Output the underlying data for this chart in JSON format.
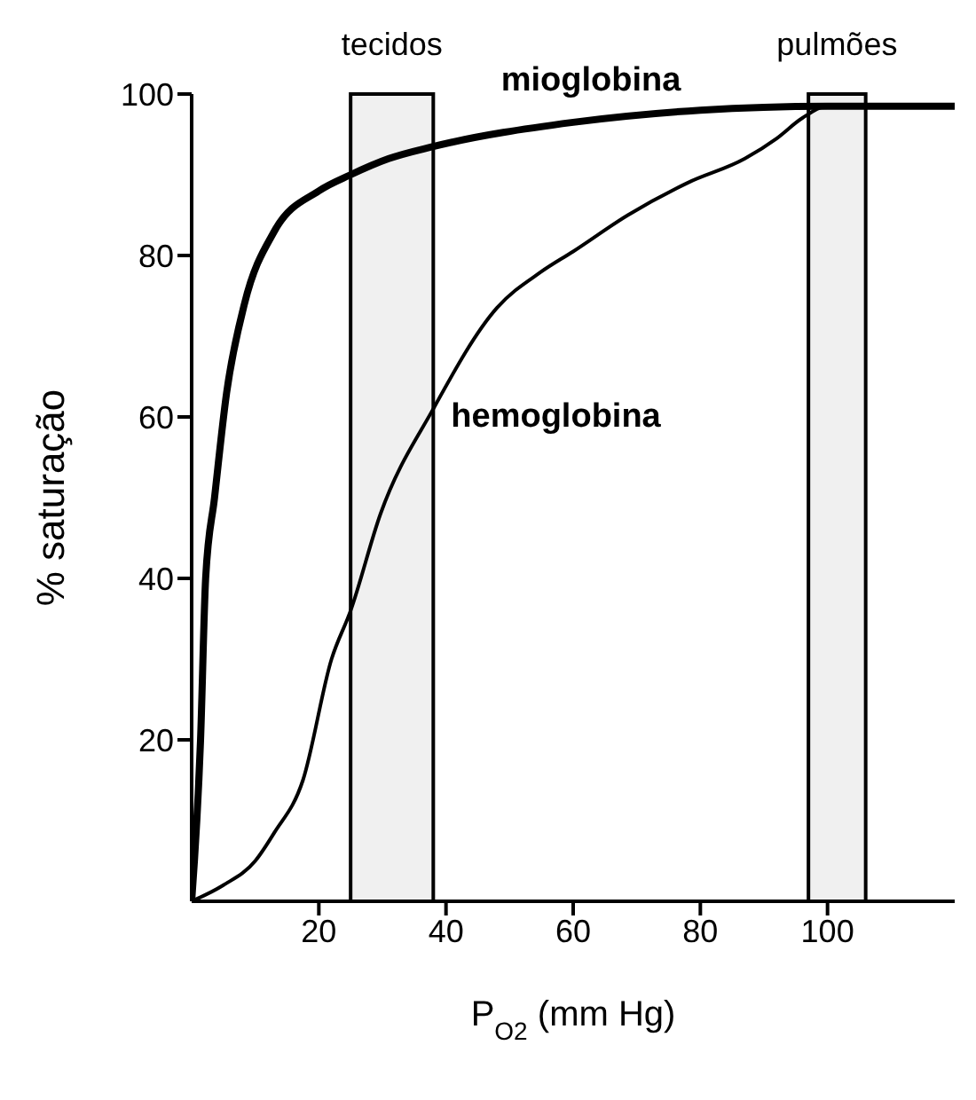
{
  "chart_data": {
    "type": "line",
    "xlabel": "P$_{O2}$ (mm Hg)",
    "ylabel": "% saturação",
    "xlim": [
      0,
      120
    ],
    "xticks": [
      20,
      40,
      60,
      80,
      100
    ],
    "ylim": [
      0,
      100
    ],
    "yticks": [
      20,
      40,
      60,
      80,
      100
    ],
    "marker": "none",
    "line_style": "solid",
    "series": [
      {
        "name": "mioglobina",
        "color": "#000000",
        "x": [
          0,
          1.4,
          2.2,
          3.6,
          5.5,
          8.3,
          13,
          20,
          25,
          31,
          38,
          60,
          80,
          100,
          120
        ],
        "values": [
          0,
          20,
          40,
          50,
          63,
          74,
          83,
          88,
          90,
          92,
          93.5,
          96.5,
          98,
          98.5,
          98.5
        ]
      },
      {
        "name": "hemoglobina",
        "color": "#000000",
        "x": [
          0,
          5,
          10,
          13,
          17.5,
          22,
          25,
          29.7,
          38,
          48,
          55,
          60,
          68.6,
          78,
          87,
          92,
          96,
          100,
          104
        ],
        "values": [
          0,
          2,
          5,
          8.5,
          15,
          30,
          36,
          48,
          61,
          73.5,
          78,
          80.5,
          85,
          89,
          92,
          94.5,
          97,
          98.5,
          98.5
        ]
      }
    ],
    "bands": [
      {
        "axis": "x",
        "from": 25,
        "to": 38,
        "label": "tecidos",
        "color": "#000000"
      },
      {
        "axis": "x",
        "from": 97,
        "to": 106,
        "label": "pulmões",
        "color": "#000000"
      }
    ]
  }
}
